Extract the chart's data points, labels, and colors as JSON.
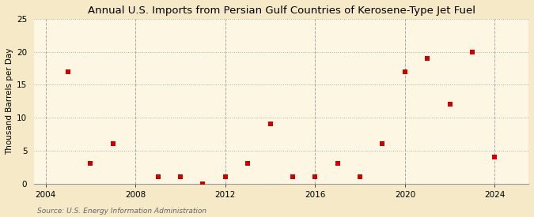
{
  "title": "Annual U.S. Imports from Persian Gulf Countries of Kerosene-Type Jet Fuel",
  "ylabel": "Thousand Barrels per Day",
  "source": "Source: U.S. Energy Information Administration",
  "background_color": "#f5e9c8",
  "plot_background_color": "#fdf6e3",
  "years": [
    2005,
    2006,
    2007,
    2009,
    2010,
    2011,
    2012,
    2013,
    2014,
    2015,
    2016,
    2017,
    2018,
    2019,
    2020,
    2021,
    2022,
    2023,
    2024
  ],
  "values": [
    17,
    3,
    6,
    1,
    1,
    0,
    1,
    3,
    9,
    1,
    1,
    3,
    1,
    6,
    17,
    19,
    12,
    20,
    4
  ],
  "marker_color": "#cc0000",
  "marker": "s",
  "marker_size": 16,
  "xlim": [
    2003.5,
    2025.5
  ],
  "ylim": [
    0,
    25
  ],
  "yticks": [
    0,
    5,
    10,
    15,
    20,
    25
  ],
  "xticks": [
    2004,
    2008,
    2012,
    2016,
    2020,
    2024
  ],
  "grid_color_h": "#aaaaaa",
  "grid_color_v": "#aaaaaa",
  "title_fontsize": 9.5,
  "label_fontsize": 7.5,
  "tick_fontsize": 7.5,
  "source_fontsize": 6.5
}
